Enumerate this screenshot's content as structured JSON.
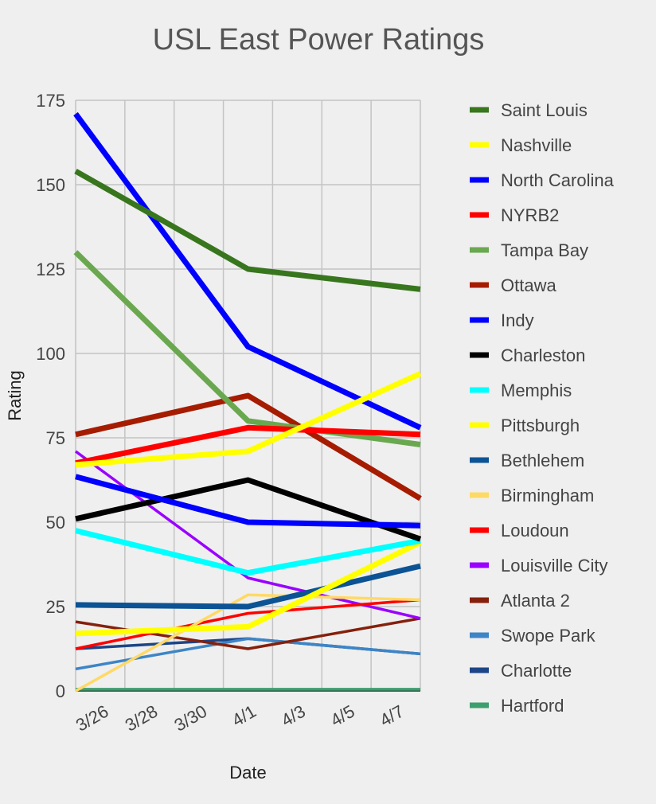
{
  "chart_data": {
    "type": "line",
    "title": "USL East Power Ratings",
    "xlabel": "Date",
    "ylabel": "Rating",
    "ylim": [
      0,
      175
    ],
    "yticks": [
      "0",
      "25",
      "50",
      "75",
      "100",
      "125",
      "150",
      "175"
    ],
    "ytick_values": [
      0,
      25,
      50,
      75,
      100,
      125,
      150,
      175
    ],
    "xlim": [
      0,
      14
    ],
    "xticks": [
      "3/26",
      "3/28",
      "3/30",
      "4/1",
      "4/3",
      "4/5",
      "4/7"
    ],
    "xtick_values": [
      1,
      3,
      5,
      7,
      9,
      11,
      13
    ],
    "grid": true,
    "legend_position": "right",
    "series": [
      {
        "name": "Saint Louis",
        "color": "#38761d",
        "width": "thick",
        "x": [
          0,
          7,
          14
        ],
        "values": [
          154,
          125,
          119
        ]
      },
      {
        "name": "Nashville",
        "color": "#ffff00",
        "width": "thick",
        "x": [
          0,
          7,
          14
        ],
        "values": [
          67,
          71,
          94
        ]
      },
      {
        "name": "North Carolina",
        "color": "#0000ff",
        "width": "thick",
        "x": [
          0,
          7,
          14
        ],
        "values": [
          171,
          102,
          78
        ]
      },
      {
        "name": "NYRB2",
        "color": "#ff0000",
        "width": "thick",
        "x": [
          0,
          7,
          14
        ],
        "values": [
          67.5,
          78,
          76
        ]
      },
      {
        "name": "Tampa Bay",
        "color": "#6aa84f",
        "width": "thick",
        "x": [
          0,
          7,
          14
        ],
        "values": [
          130,
          80,
          73
        ]
      },
      {
        "name": "Ottawa",
        "color": "#a61c00",
        "width": "thick",
        "x": [
          0,
          7,
          14
        ],
        "values": [
          76,
          87.5,
          57
        ]
      },
      {
        "name": "Indy",
        "color": "#0000ff",
        "width": "thick",
        "x": [
          0,
          7,
          14
        ],
        "values": [
          63.5,
          50,
          49
        ]
      },
      {
        "name": "Charleston",
        "color": "#000000",
        "width": "thick",
        "x": [
          0,
          7,
          14
        ],
        "values": [
          51,
          62.5,
          45
        ]
      },
      {
        "name": "Memphis",
        "color": "#00ffff",
        "width": "thick",
        "x": [
          0,
          7,
          14
        ],
        "values": [
          47.5,
          35,
          44.5
        ]
      },
      {
        "name": "Pittsburgh",
        "color": "#ffff00",
        "width": "thick",
        "x": [
          0,
          7,
          14
        ],
        "values": [
          17,
          19,
          44
        ]
      },
      {
        "name": "Bethlehem",
        "color": "#0b5394",
        "width": "thick",
        "x": [
          0,
          7,
          14
        ],
        "values": [
          25.5,
          25,
          37
        ]
      },
      {
        "name": "Birmingham",
        "color": "#ffd966",
        "width": "thin",
        "x": [
          0,
          7,
          14
        ],
        "values": [
          0,
          28.5,
          27
        ]
      },
      {
        "name": "Loudoun",
        "color": "#ff0000",
        "width": "thin",
        "x": [
          0,
          7,
          14
        ],
        "values": [
          12.5,
          23,
          27
        ]
      },
      {
        "name": "Louisville City",
        "color": "#9900ff",
        "width": "thin",
        "x": [
          0,
          7,
          14
        ],
        "values": [
          71,
          33.5,
          21.5
        ]
      },
      {
        "name": "Atlanta 2",
        "color": "#85200c",
        "width": "thin",
        "x": [
          0,
          7,
          14
        ],
        "values": [
          20.5,
          12.5,
          21.5
        ]
      },
      {
        "name": "Swope Park",
        "color": "#3d85c6",
        "width": "thin",
        "x": [
          0,
          7,
          14
        ],
        "values": [
          6.5,
          15.5,
          11
        ]
      },
      {
        "name": "Charlotte",
        "color": "#1c4587",
        "width": "thin",
        "x": [
          0,
          7,
          14
        ],
        "values": [
          12.5,
          15.5,
          11
        ]
      },
      {
        "name": "Hartford",
        "color": "#3c9f6e",
        "width": "thin",
        "x": [
          0,
          7,
          14
        ],
        "values": [
          0.5,
          0.5,
          0.5
        ]
      }
    ]
  }
}
